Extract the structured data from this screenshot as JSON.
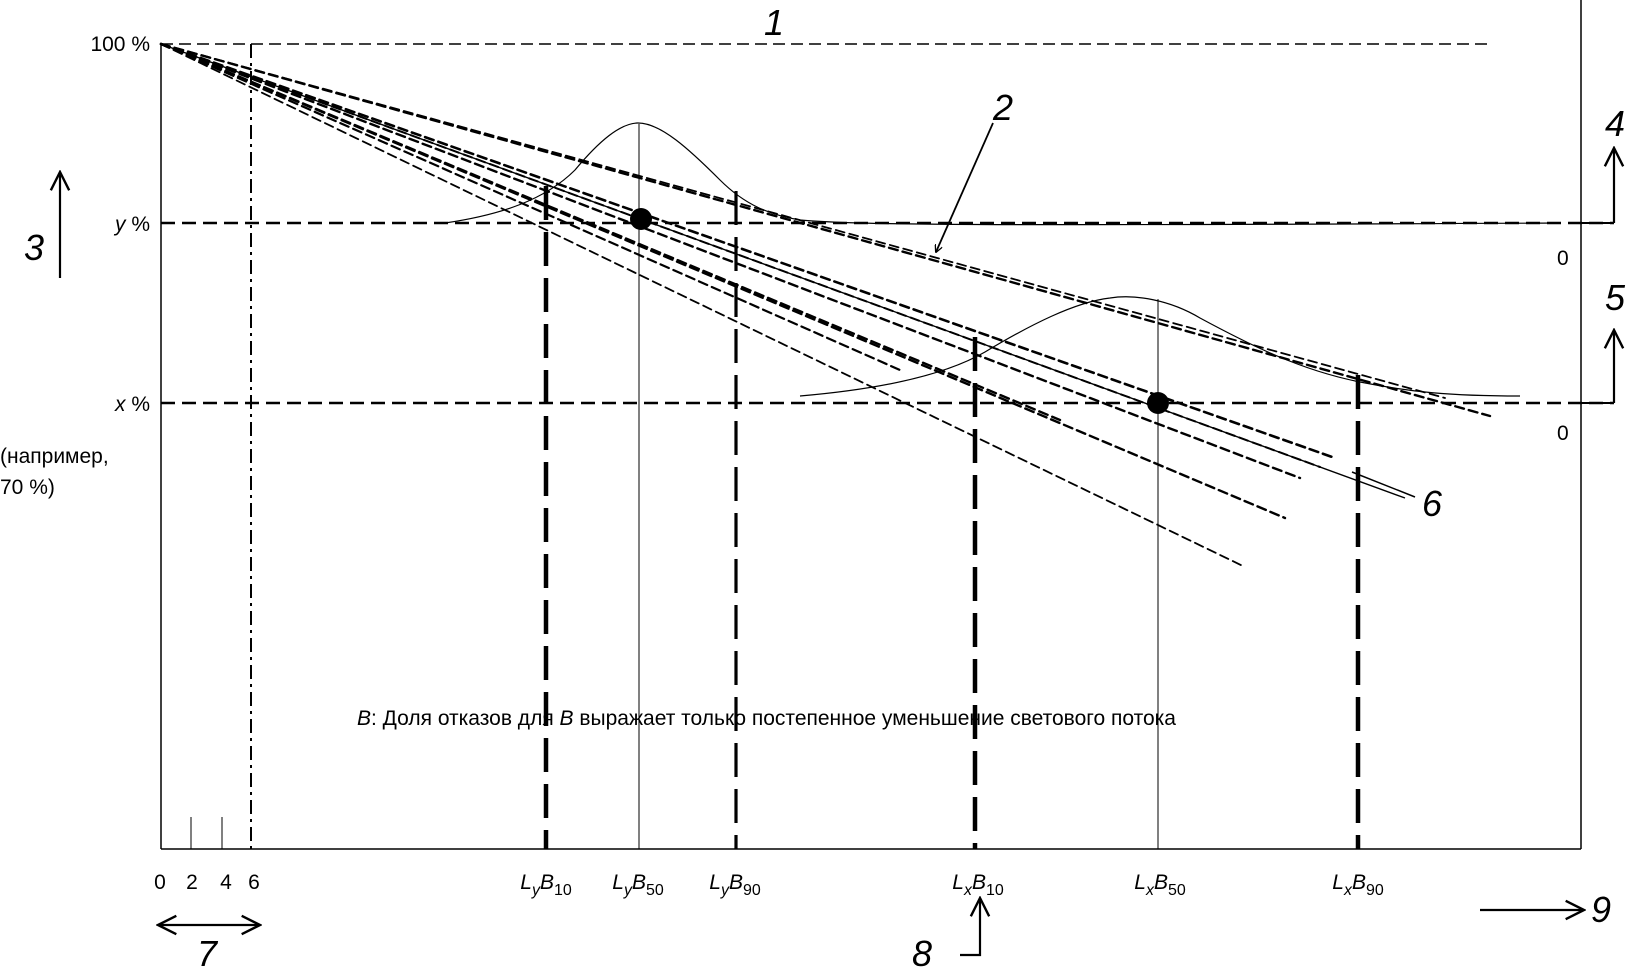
{
  "labels": {
    "y100": "100 %",
    "y": "y",
    "x": "x",
    "pct": " %",
    "example_line1": "(например,",
    "example_line2": "70 %)",
    "zero_y": "0",
    "zero_x": "0",
    "ticks": [
      "0",
      "2",
      "4",
      "6"
    ],
    "L": "L",
    "B": "B",
    "sub_y": "y",
    "sub_x": "x",
    "b10": "10",
    "b50": "50",
    "b90": "90",
    "note_symbol": "B",
    "note_mid": ": Доля отказов для ",
    "note_symbol2": "B",
    "note_rest": " выражает только постепенное уменьшение светового потока"
  },
  "callouts": [
    "1",
    "2",
    "3",
    "4",
    "5",
    "6",
    "7",
    "8",
    "9"
  ],
  "colors": {
    "ink": "#000000",
    "background": "#ffffff"
  }
}
